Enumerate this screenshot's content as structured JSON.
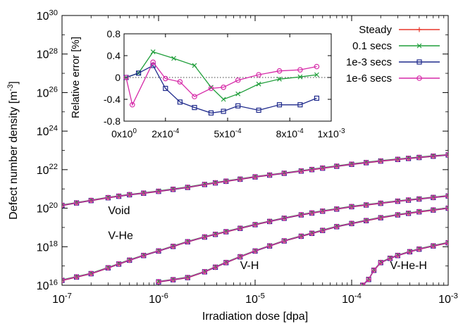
{
  "chart_data": [
    {
      "type": "line",
      "xlabel": "Irradiation dose [dpa]",
      "ylabel": "Defect number density [m",
      "ylabel_sup": "-3",
      "ylabel_tail": "]",
      "x_scale": "log",
      "y_scale": "log",
      "xlim": [
        1e-07,
        0.001
      ],
      "ylim": [
        1e+16,
        1e+30
      ],
      "x_ticks": [
        {
          "v": 1e-07,
          "base": "10",
          "exp": "-7"
        },
        {
          "v": 1e-06,
          "base": "10",
          "exp": "-6"
        },
        {
          "v": 1e-05,
          "base": "10",
          "exp": "-5"
        },
        {
          "v": 0.0001,
          "base": "10",
          "exp": "-4"
        },
        {
          "v": 0.001,
          "base": "10",
          "exp": "-3"
        }
      ],
      "y_ticks": [
        {
          "v": 1e+16,
          "base": "10",
          "exp": "16"
        },
        {
          "v": 1e+18,
          "base": "10",
          "exp": "18"
        },
        {
          "v": 1e+20,
          "base": "10",
          "exp": "20"
        },
        {
          "v": 1e+22,
          "base": "10",
          "exp": "22"
        },
        {
          "v": 1e+24,
          "base": "10",
          "exp": "24"
        },
        {
          "v": 1e+26,
          "base": "10",
          "exp": "26"
        },
        {
          "v": 1e+28,
          "base": "10",
          "exp": "28"
        },
        {
          "v": 1e+30,
          "base": "10",
          "exp": "30"
        }
      ],
      "legend_position": "top-right",
      "legend": [
        {
          "label": "Steady",
          "color": "#e8372a",
          "marker": "plus"
        },
        {
          "label": "0.1 secs",
          "color": "#1f9e3a",
          "marker": "x"
        },
        {
          "label": "1e-3 secs",
          "color": "#1f2a8c",
          "marker": "square"
        },
        {
          "label": "1e-6 secs",
          "color": "#d62aa8",
          "marker": "circle"
        }
      ],
      "curve_labels": [
        {
          "text": "Void",
          "x": 3e-07,
          "y": 5e+19
        },
        {
          "text": "V-He",
          "x": 3e-07,
          "y": 2.5e+18
        },
        {
          "text": "V-H",
          "x": 7e-06,
          "y": 7e+16
        },
        {
          "text": "V-He-H",
          "x": 0.00025,
          "y": 7e+16
        }
      ],
      "groups": [
        {
          "name": "Void",
          "x": [
            1e-07,
            2e-07,
            3e-07,
            5e-07,
            7e-07,
            1e-06,
            2e-06,
            3e-06,
            5e-06,
            7e-06,
            1e-05,
            2e-05,
            3e-05,
            5e-05,
            7e-05,
            0.0001,
            0.0002,
            0.0003,
            0.0005,
            0.0007,
            0.001
          ],
          "y": [
            1.4e+20,
            2.5e+20,
            3.5e+20,
            5e+20,
            6e+20,
            7.5e+20,
            1.2e+21,
            1.7e+21,
            2.5e+21,
            3.2e+21,
            4.2e+21,
            6.5e+21,
            8.5e+21,
            1.2e+22,
            1.5e+22,
            1.9e+22,
            2.8e+22,
            3.4e+22,
            4.3e+22,
            5e+22,
            5.8e+22
          ]
        },
        {
          "name": "V-He",
          "x": [
            1e-07,
            2e-07,
            3e-07,
            5e-07,
            7e-07,
            1e-06,
            2e-06,
            3e-06,
            5e-06,
            7e-06,
            1e-05,
            2e-05,
            3e-05,
            5e-05,
            7e-05,
            0.0001,
            0.0002,
            0.0003,
            0.0005,
            0.0007,
            0.001
          ],
          "y": [
            1.8e+16,
            4e+16,
            8e+16,
            2e+17,
            3.5e+17,
            6e+17,
            1.8e+18,
            3.2e+18,
            6e+18,
            9e+18,
            1.4e+19,
            3e+19,
            4.5e+19,
            7e+19,
            9e+19,
            1.2e+20,
            1.8e+20,
            2.3e+20,
            3e+20,
            3.6e+20,
            4.3e+20
          ]
        },
        {
          "name": "V-H",
          "x": [
            1e-06,
            2e-06,
            3e-06,
            5e-06,
            7e-06,
            1e-05,
            2e-05,
            3e-05,
            5e-05,
            7e-05,
            0.0001,
            0.0002,
            0.0003,
            0.0005,
            0.0007,
            0.001
          ],
          "y": [
            1.5e+16,
            2.5e+16,
            5e+16,
            1.5e+17,
            3e+17,
            6e+17,
            2e+18,
            3.5e+18,
            7e+18,
            1.1e+19,
            1.6e+19,
            3.2e+19,
            4.5e+19,
            6.5e+19,
            8e+19,
            1e+20
          ]
        },
        {
          "name": "V-He-H",
          "x": [
            0.00013,
            0.00015,
            0.00017,
            0.0002,
            0.00025,
            0.0003,
            0.0004,
            0.0005,
            0.0007,
            0.001
          ],
          "y": [
            1e+16,
            2e+16,
            6e+16,
            1.5e+17,
            2.5e+17,
            3.5e+17,
            5.5e+17,
            7.5e+17,
            1.1e+18,
            1.6e+18
          ]
        }
      ]
    },
    {
      "type": "line",
      "ylabel": "Relative error [%]",
      "x_scale": "linear",
      "xlim": [
        0,
        0.001
      ],
      "ylim": [
        -0.8,
        0.8
      ],
      "x_ticks": [
        {
          "v": 0,
          "base": "0x10",
          "exp": "0"
        },
        {
          "v": 0.0002,
          "base": "2x10",
          "exp": "-4"
        },
        {
          "v": 0.0005,
          "base": "5x10",
          "exp": "-4"
        },
        {
          "v": 0.0008,
          "base": "8x10",
          "exp": "-4"
        },
        {
          "v": 0.001,
          "base": "1x10",
          "exp": "-3"
        }
      ],
      "y_ticks": [
        {
          "v": 0.8,
          "label": "0.8"
        },
        {
          "v": 0.4,
          "label": "0.4"
        },
        {
          "v": 0,
          "label": "0"
        },
        {
          "v": -0.4,
          "label": "-0.4"
        },
        {
          "v": -0.8,
          "label": "-0.8"
        }
      ],
      "zero_line": true,
      "series": [
        {
          "name": "0.1 secs",
          "x": [
            1e-05,
            7e-05,
            0.00014,
            0.00024,
            0.00034,
            0.00042,
            0.00048,
            0.00055,
            0.00065,
            0.00075,
            0.00085,
            0.00093
          ],
          "y": [
            0,
            0.08,
            0.47,
            0.35,
            0.22,
            -0.18,
            -0.4,
            -0.3,
            -0.12,
            -0.03,
            0.01,
            0.05
          ]
        },
        {
          "name": "1e-3 secs",
          "x": [
            1e-05,
            7e-05,
            0.00014,
            0.0002,
            0.00027,
            0.00034,
            0.00042,
            0.00048,
            0.00055,
            0.00065,
            0.00075,
            0.00085,
            0.00093
          ],
          "y": [
            0,
            0.08,
            0.22,
            -0.2,
            -0.45,
            -0.55,
            -0.65,
            -0.62,
            -0.52,
            -0.6,
            -0.5,
            -0.5,
            -0.38
          ]
        },
        {
          "name": "1e-6 secs",
          "x": [
            1e-05,
            4e-05,
            0.00014,
            0.0002,
            0.00027,
            0.00034,
            0.00042,
            0.00048,
            0.00055,
            0.00065,
            0.00075,
            0.00085,
            0.00093
          ],
          "y": [
            0,
            -0.5,
            0.28,
            -0.02,
            -0.08,
            -0.35,
            -0.2,
            -0.18,
            -0.05,
            0.05,
            0.12,
            0.14,
            0.2
          ]
        }
      ]
    }
  ]
}
